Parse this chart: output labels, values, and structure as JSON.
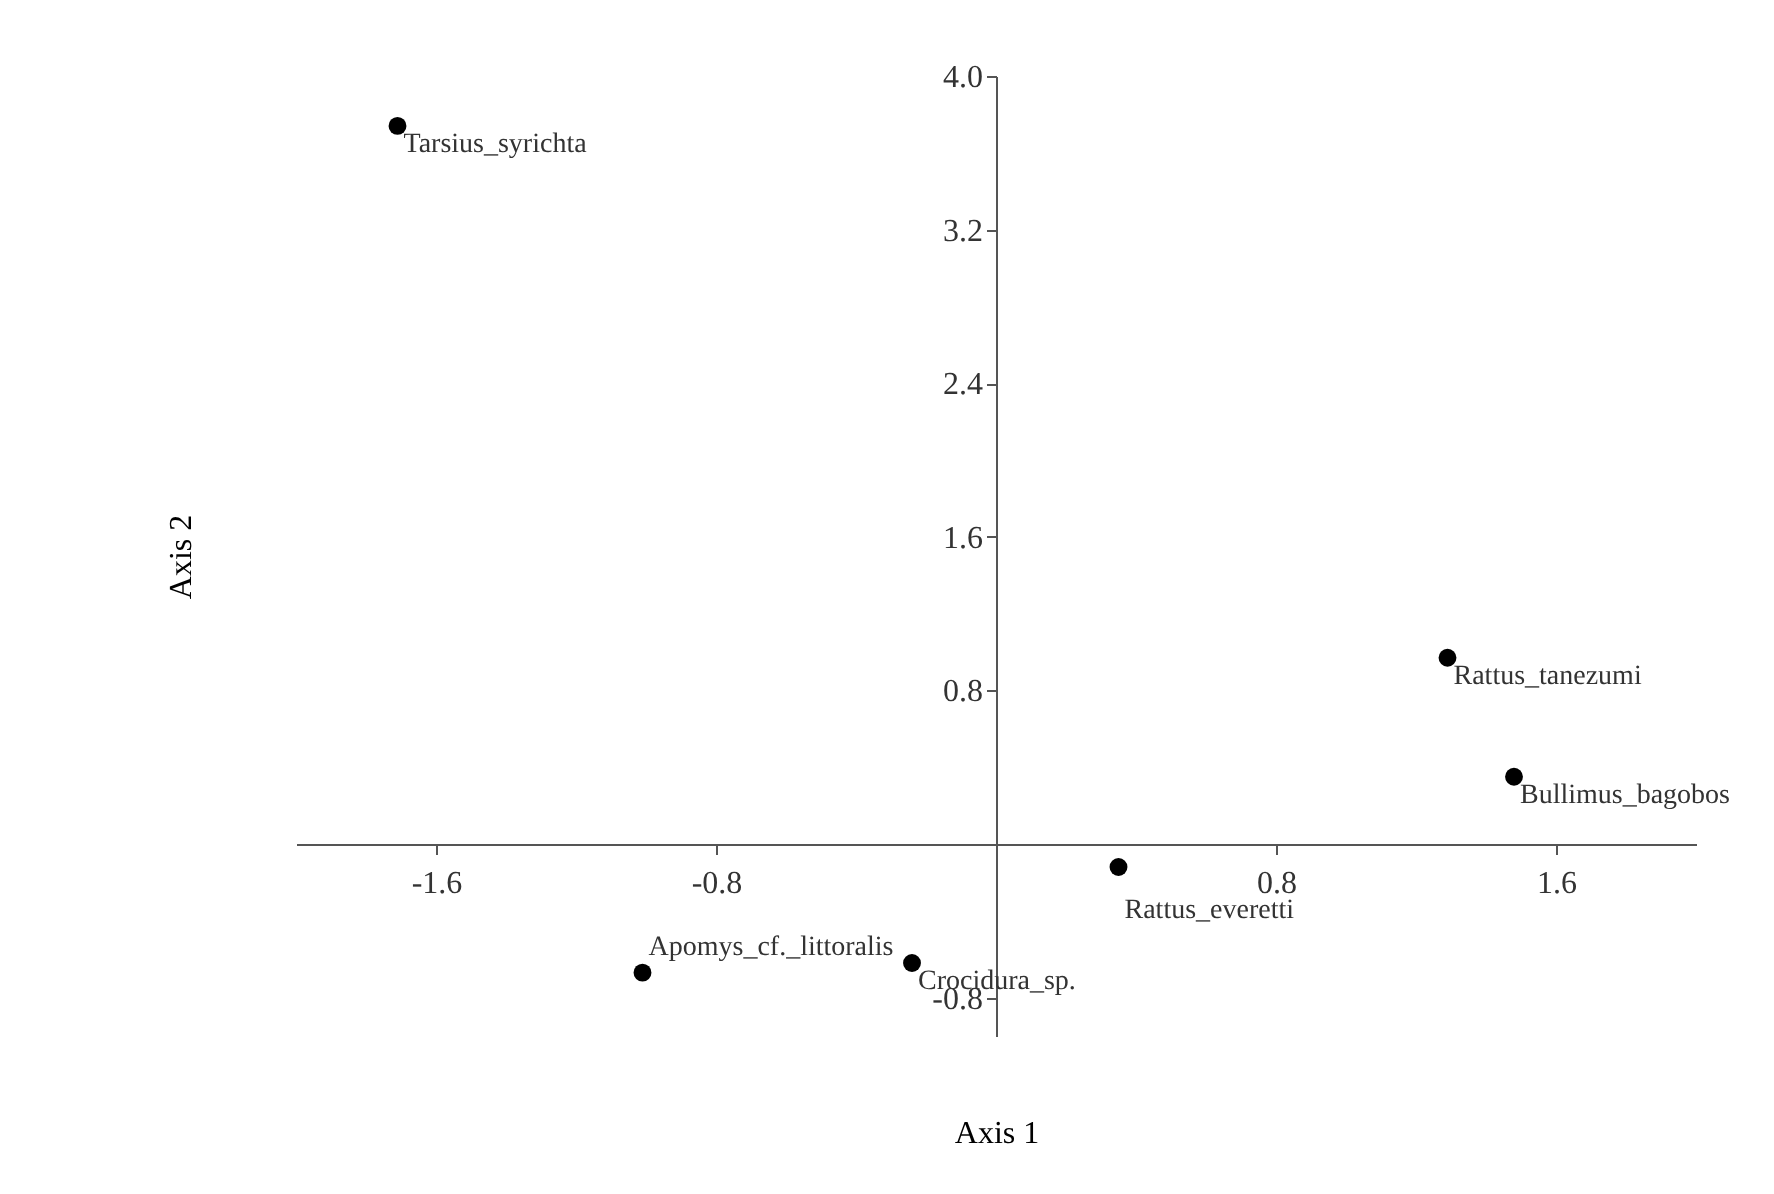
{
  "chart_data": {
    "type": "scatter",
    "xlabel": "Axis 1",
    "ylabel": "Axis 2",
    "xlim": [
      -2,
      2
    ],
    "ylim": [
      -1,
      4
    ],
    "xticks": [
      -1.6,
      -0.8,
      0.8,
      1.6
    ],
    "yticks": [
      -0.8,
      0.8,
      1.6,
      2.4,
      3.2,
      {
        "value": 4,
        "label": "4.0"
      }
    ],
    "grid": false,
    "marker": "circle",
    "series": [
      {
        "color": "#000000",
        "x": [
          -1.71,
          1.29,
          1.48,
          0.35,
          -0.24,
          -1.01
        ],
        "values": [
          3.74,
          0.97,
          0.35,
          -0.12,
          -0.62,
          -0.67
        ]
      }
    ],
    "annotations": [
      {
        "text": "Tarsius_syrichta",
        "x": -1.71,
        "y": 3.74
      },
      {
        "text": "Rattus_tanezumi",
        "x": 1.29,
        "y": 0.97
      },
      {
        "text": "Bullimus_bagobos",
        "x": 1.48,
        "y": 0.35
      },
      {
        "text": "Rattus_everetti",
        "x": 0.35,
        "y": -0.12
      },
      {
        "text": "Crocidura_sp.",
        "x": -0.24,
        "y": -0.62
      },
      {
        "text": "Apomys_cf._littoralis",
        "x": -1.01,
        "y": -0.67
      }
    ]
  }
}
